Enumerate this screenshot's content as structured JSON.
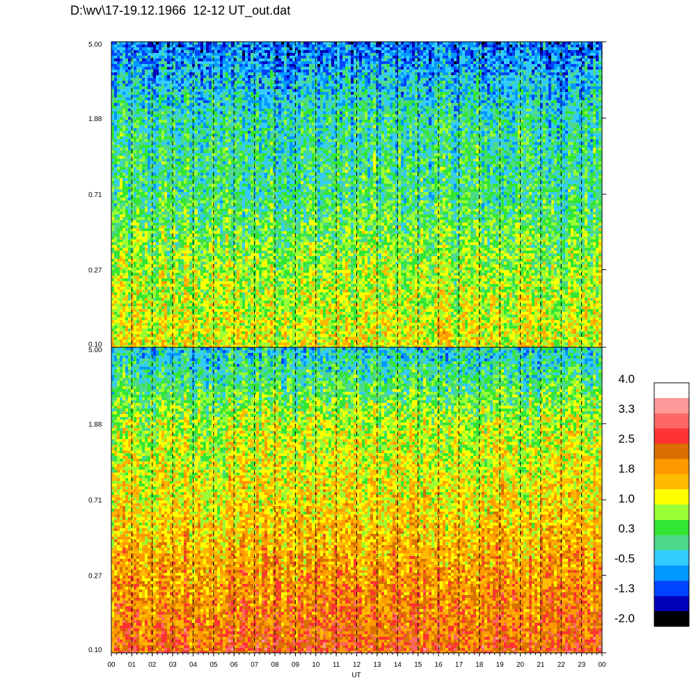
{
  "title": "D:\\wv\\17-19.12.1966  12-12 UT_out.dat",
  "chart_data": [
    {
      "type": "heatmap",
      "panel": "top",
      "y_scale": "log",
      "ylim": [
        0.1,
        5.0
      ],
      "y_ticks": [
        "5.00",
        "1.88",
        "0.71",
        "0.27",
        "0.10"
      ],
      "y_tick_values": [
        5.0,
        1.88,
        0.71,
        0.27,
        0.1
      ],
      "xlim": [
        0,
        24
      ],
      "dominant_levels_by_y": [
        {
          "y": 5.0,
          "level": -0.9
        },
        {
          "y": 1.88,
          "level": 0.0
        },
        {
          "y": 0.71,
          "level": 0.2
        },
        {
          "y": 0.27,
          "level": 0.8
        },
        {
          "y": 0.1,
          "level": 1.2
        }
      ]
    },
    {
      "type": "heatmap",
      "panel": "bottom",
      "y_scale": "log",
      "ylim": [
        0.1,
        5.0
      ],
      "y_ticks": [
        "5.00",
        "1.88",
        "0.71",
        "0.27",
        "0.10"
      ],
      "y_tick_values": [
        5.0,
        1.88,
        0.71,
        0.27,
        0.1
      ],
      "xlim": [
        0,
        24
      ],
      "xlabel": "UT",
      "x_ticks": [
        "00",
        "01",
        "02",
        "03",
        "04",
        "05",
        "06",
        "07",
        "08",
        "09",
        "10",
        "11",
        "12",
        "13",
        "14",
        "15",
        "16",
        "17",
        "18",
        "19",
        "20",
        "21",
        "22",
        "23",
        "00"
      ],
      "dominant_levels_by_y": [
        {
          "y": 5.0,
          "level": -0.3
        },
        {
          "y": 1.88,
          "level": 0.9
        },
        {
          "y": 0.71,
          "level": 1.3
        },
        {
          "y": 0.27,
          "level": 1.9
        },
        {
          "y": 0.1,
          "level": 2.4
        }
      ]
    }
  ],
  "colorbar": {
    "labels": [
      "4.0",
      "3.3",
      "2.5",
      "1.8",
      "1.0",
      "0.3",
      "-0.5",
      "-1.3",
      "-2.0"
    ],
    "range": [
      -2.0,
      4.0
    ],
    "colors_top_to_bottom": [
      "#ffffff",
      "#ff9999",
      "#ff6666",
      "#ff3333",
      "#d97000",
      "#ff9900",
      "#ffbb00",
      "#ffff00",
      "#99ff33",
      "#33e633",
      "#4dd98c",
      "#33ccff",
      "#0099ff",
      "#0044ff",
      "#0000bb",
      "#000000"
    ]
  },
  "guide_lines_hours": [
    1,
    2,
    3,
    4,
    5,
    6,
    7,
    8,
    9,
    10,
    11,
    12,
    13,
    14,
    15,
    16,
    17,
    18,
    19,
    20,
    21,
    22,
    23
  ]
}
